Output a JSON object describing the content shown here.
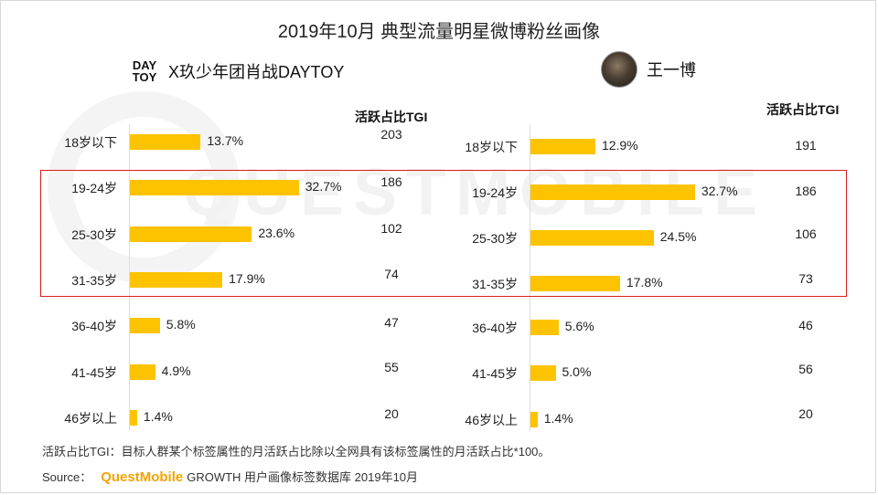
{
  "title": "2019年10月 典型流量明星微博粉丝画像",
  "watermark": "QUESTMOBILE",
  "panels": [
    {
      "logo": "DAY TOY",
      "logo_line1": "DAY",
      "logo_line2": "TOY",
      "name": "X玖少年团肖战DAYTOY",
      "tgi_header": "活跃占比TGI"
    },
    {
      "avatar": "avatar-photo",
      "name": "王一博",
      "tgi_header": "活跃占比TGI"
    }
  ],
  "chart_data": [
    {
      "type": "bar",
      "orientation": "horizontal",
      "categories": [
        "18岁以下",
        "19-24岁",
        "25-30岁",
        "31-35岁",
        "36-40岁",
        "41-45岁",
        "46岁以上"
      ],
      "values": [
        13.7,
        32.7,
        23.6,
        17.9,
        5.8,
        4.9,
        1.4
      ],
      "value_labels": [
        "13.7%",
        "32.7%",
        "23.6%",
        "17.9%",
        "5.8%",
        "4.9%",
        "1.4%"
      ],
      "tgi": [
        "203",
        "186",
        "102",
        "74",
        "47",
        "55",
        "20"
      ],
      "unit": "%",
      "color": "#fdc300"
    },
    {
      "type": "bar",
      "orientation": "horizontal",
      "categories": [
        "18岁以下",
        "19-24岁",
        "25-30岁",
        "31-35岁",
        "36-40岁",
        "41-45岁",
        "46岁以上"
      ],
      "values": [
        12.9,
        32.7,
        24.5,
        17.8,
        5.6,
        5.0,
        1.4
      ],
      "value_labels": [
        "12.9%",
        "32.7%",
        "24.5%",
        "17.8%",
        "5.6%",
        "5.0%",
        "1.4%"
      ],
      "tgi": [
        "191",
        "186",
        "106",
        "73",
        "46",
        "56",
        "20"
      ],
      "unit": "%",
      "color": "#fdc300"
    }
  ],
  "highlight_color": "#d81e1e",
  "footnote": "活跃占比TGI：目标人群某个标签属性的月活跃占比除以全网具有该标签属性的月活跃占比*100。",
  "source": {
    "label": "Source：",
    "brand": "QuestMobile",
    "text": "GROWTH 用户画像标签数据库 2019年10月"
  }
}
